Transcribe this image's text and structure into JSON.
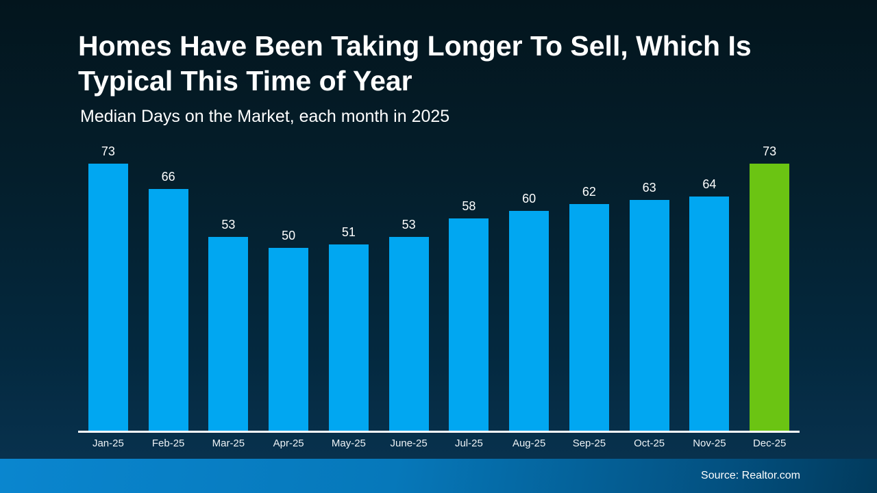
{
  "slide": {
    "title": "Homes Have Been Taking Longer To Sell, Which Is Typical This Time of Year",
    "subtitle": "Median Days on the Market, each month in 2025",
    "source": "Source: Realtor.com"
  },
  "chart_data": {
    "type": "bar",
    "title": "Homes Have Been Taking Longer To Sell, Which Is Typical This Time of Year",
    "subtitle": "Median Days on the Market, each month in 2025",
    "categories": [
      "Jan-25",
      "Feb-25",
      "Mar-25",
      "Apr-25",
      "May-25",
      "June-25",
      "Jul-25",
      "Aug-25",
      "Sep-25",
      "Oct-25",
      "Nov-25",
      "Dec-25"
    ],
    "values": [
      73,
      66,
      53,
      50,
      51,
      53,
      58,
      60,
      62,
      63,
      64,
      73
    ],
    "xlabel": "",
    "ylabel": "",
    "ylim": [
      0,
      80
    ],
    "grid": false,
    "legend": false,
    "y_axis_visible": false,
    "data_labels": true,
    "highlight_index": 11,
    "colors": {
      "default_bar": "#01a7f1",
      "highlight_bar": "#6bc413",
      "label_text": "#ffffff",
      "axis_line": "#ffffff"
    }
  }
}
